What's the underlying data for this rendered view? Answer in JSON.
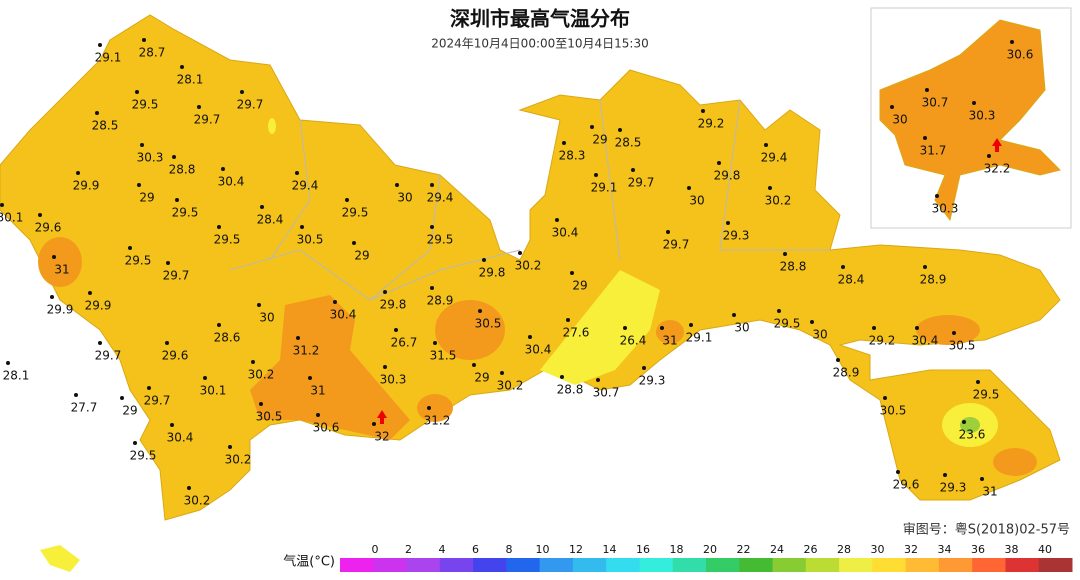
{
  "header": {
    "title": "深圳市最高气温分布",
    "subtitle": "2024年10月4日00:00至10月4日15:30"
  },
  "stations": [
    29.1,
    28.7,
    28.1,
    29.5,
    29.7,
    29.7,
    28.5,
    30.3,
    28.8,
    30.4,
    29.9,
    29,
    29.5,
    29.4,
    28.4,
    30,
    29.4,
    29.5,
    30.1,
    29.6,
    29.5,
    30.5,
    29.5,
    31,
    29.5,
    29.7,
    29,
    29.8,
    30.2,
    30.4,
    29,
    29.9,
    29.9,
    30,
    30.4,
    29.8,
    28.9,
    30.5,
    28.6,
    26.7,
    31.2,
    29.7,
    29.6,
    31.5,
    30.4,
    27.6,
    26.4,
    31,
    29.1,
    30,
    29.5,
    30,
    28.1,
    30.2,
    30.1,
    31,
    30.3,
    29,
    30.2,
    28.8,
    30.7,
    29.3,
    27.7,
    29.7,
    29,
    30.5,
    30.6,
    32,
    31.2,
    30.4,
    29.5,
    30.2,
    30.2,
    28.3,
    29,
    28.5,
    29.2,
    29.4,
    29.1,
    29.7,
    29.8,
    30,
    30.2,
    29.7,
    29.3,
    28.8,
    28.4,
    28.9,
    29.2,
    30.4,
    30.5,
    28.9,
    30.5,
    29.5,
    23.6,
    29.6,
    29.3,
    31
  ],
  "inset_stations": [
    30.6,
    30.7,
    30,
    30.3,
    31.7,
    32.2,
    30.3
  ],
  "note": "审图号：粤S(2018)02-57号",
  "legend": {
    "label": "气温(°C)",
    "ticks": [
      0,
      2,
      4,
      6,
      8,
      10,
      12,
      14,
      16,
      18,
      20,
      22,
      24,
      26,
      28,
      30,
      32,
      34,
      36,
      38,
      40
    ],
    "colors": [
      "#ee22ee",
      "#cc33ee",
      "#aa44ee",
      "#7744ee",
      "#4444ee",
      "#2266ee",
      "#3399ee",
      "#33bbee",
      "#33ddee",
      "#33eedd",
      "#33ddaa",
      "#33cc66",
      "#44bb33",
      "#88cc33",
      "#bbdd33",
      "#eeee44",
      "#ffdd33",
      "#ffbb33",
      "#ff9933",
      "#ff6633",
      "#dd3333",
      "#aa3333"
    ]
  }
}
